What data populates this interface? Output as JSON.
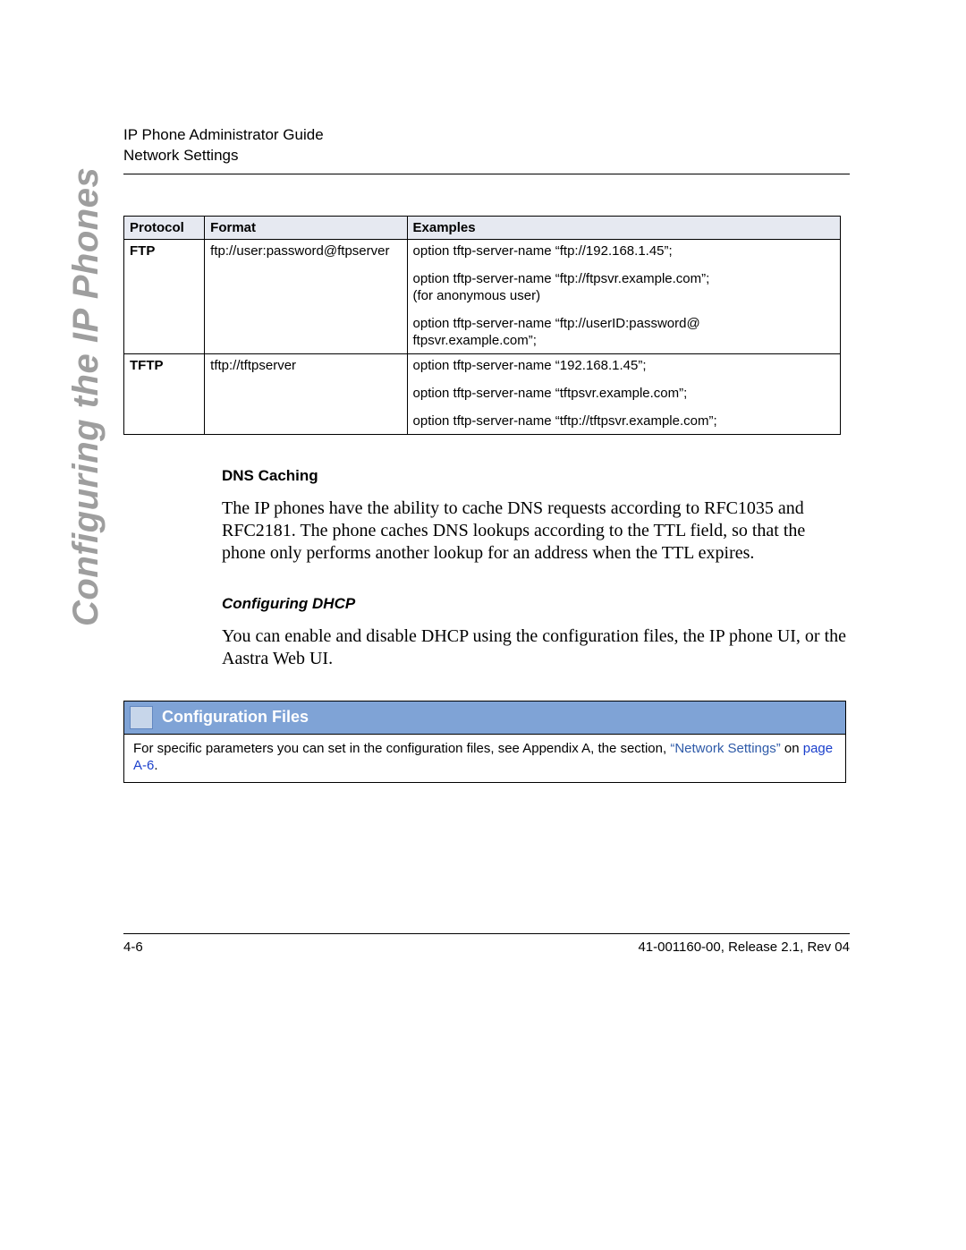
{
  "header": {
    "line1": "IP Phone Administrator Guide",
    "line2": "Network Settings"
  },
  "side_title": "Configuring the IP Phones",
  "table": {
    "headers": {
      "protocol": "Protocol",
      "format": "Format",
      "examples": "Examples"
    },
    "rows": [
      {
        "protocol": "FTP",
        "format": "ftp://user:password@ftpserver",
        "examples": [
          [
            "option tftp-server-name “ftp://192.168.1.45”;"
          ],
          [
            "option tftp-server-name “ftp://ftpsvr.example.com”;",
            "(for anonymous user)"
          ],
          [
            "option tftp-server-name “ftp://userID:password@",
            "ftpsvr.example.com”;"
          ]
        ]
      },
      {
        "protocol": "TFTP",
        "format": "tftp://tftpserver",
        "examples": [
          [
            "option tftp-server-name “192.168.1.45”;"
          ],
          [
            "option tftp-server-name “tftpsvr.example.com”;"
          ],
          [
            "option tftp-server-name “tftp://tftpsvr.example.com”;"
          ]
        ]
      }
    ]
  },
  "sections": {
    "dns_caching_title": "DNS Caching",
    "dns_caching_para": "The IP phones have the ability to cache DNS requests according to RFC1035 and RFC2181. The phone caches DNS lookups according to the TTL field, so that the phone only performs another lookup for an address when the TTL expires.",
    "config_dhcp_title": "Configuring DHCP",
    "config_dhcp_para": "You can enable and disable DHCP using the configuration files, the IP phone UI, or the Aastra Web UI."
  },
  "config_box": {
    "title": "Configuration Files",
    "body_pre": "For specific parameters you can set in the configuration files, see Appendix A, the section, ",
    "link1": "“Network Settings”",
    "body_mid": " on ",
    "link2": "page A-6",
    "body_post": "."
  },
  "footer": {
    "left": "4-6",
    "right": "41-001160-00, Release 2.1, Rev 04"
  },
  "colors": {
    "side_title": "#9e9e9e",
    "table_header_bg": "#e6e9f1",
    "bar_bg": "#7fa3d6",
    "bar_square_bg": "#c7d6ea",
    "bar_square_border": "#6186c0",
    "bar_title_color": "#ffffff",
    "link1": "#2e5aa8",
    "link2": "#1a3fcc"
  }
}
